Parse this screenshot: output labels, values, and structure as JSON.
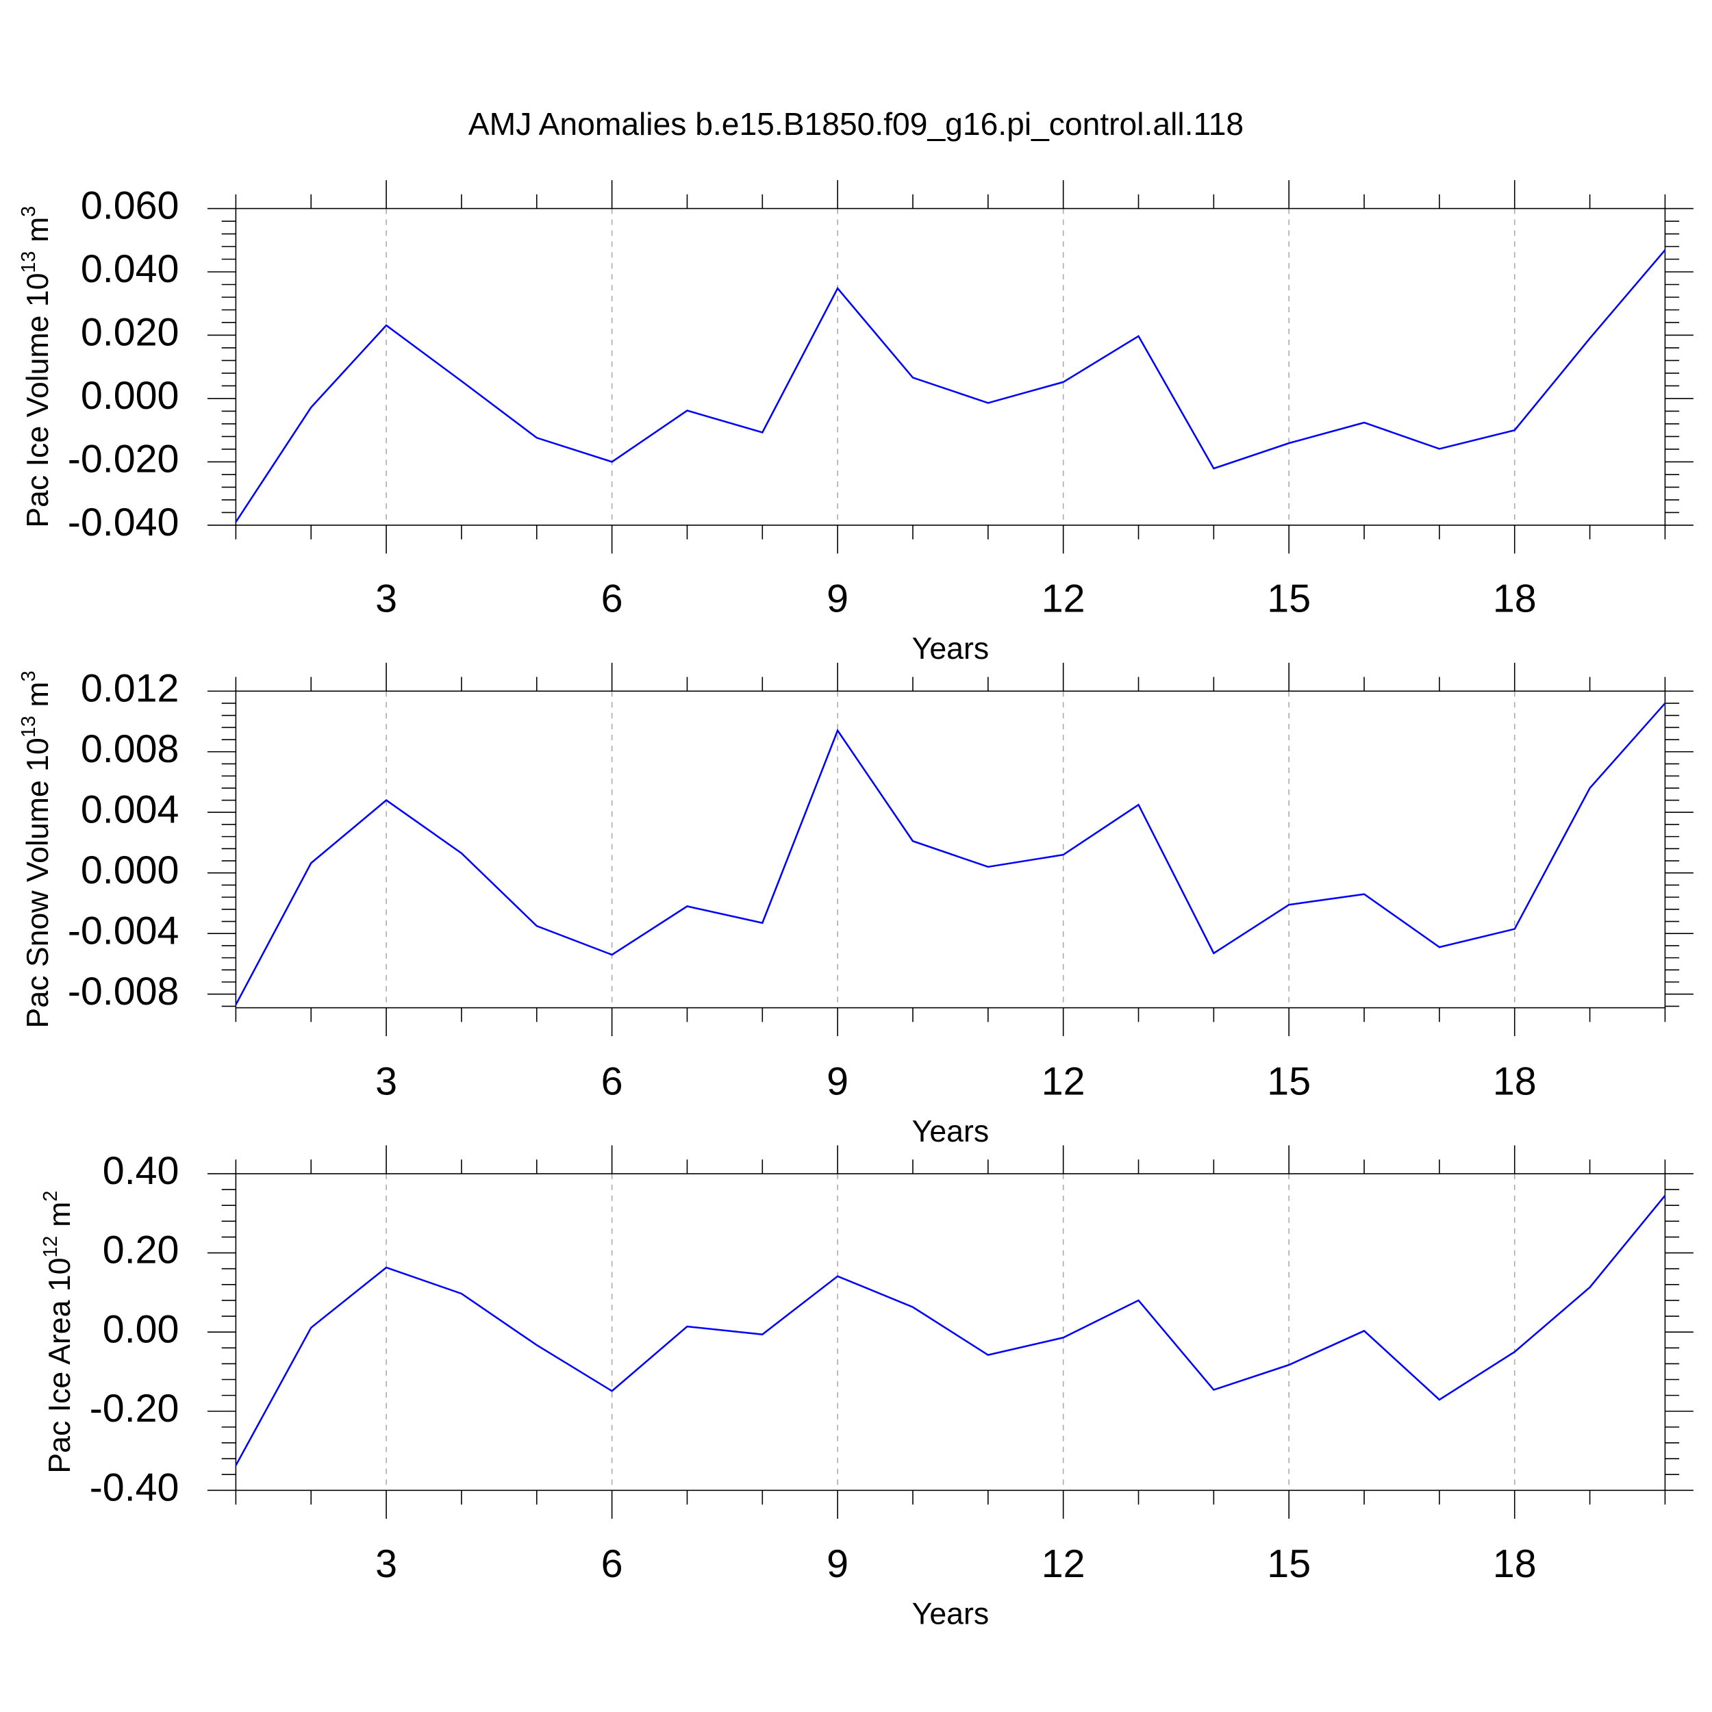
{
  "title": "AMJ Anomalies b.e15.B1850.f09_g16.pi_control.all.118",
  "chart_data": [
    {
      "type": "line",
      "x": [
        1,
        2,
        3,
        4,
        5,
        6,
        7,
        8,
        9,
        10,
        11,
        12,
        13,
        14,
        15,
        16,
        17,
        18,
        19,
        20
      ],
      "xlim": [
        1,
        20
      ],
      "xticks": [
        3,
        6,
        9,
        12,
        15,
        18
      ],
      "xminorticks": [
        1,
        2,
        4,
        5,
        7,
        8,
        10,
        11,
        13,
        14,
        16,
        17,
        19,
        20
      ],
      "xlabel": "Years",
      "ylabel": {
        "text": "Pac Ice Volume 10",
        "exp": "13",
        "unit": "m",
        "unit_exp": "3"
      },
      "ylim": [
        -0.04,
        0.06
      ],
      "yticks": [
        {
          "value": -0.04,
          "label": "-0.040"
        },
        {
          "value": -0.02,
          "label": "-0.020"
        },
        {
          "value": 0,
          "label": "0.000"
        },
        {
          "value": 0.02,
          "label": "0.020"
        },
        {
          "value": 0.04,
          "label": "0.040"
        },
        {
          "value": 0.06,
          "label": "0.060"
        }
      ],
      "yminorticks": [
        -0.036,
        -0.032,
        -0.028,
        -0.024,
        -0.016,
        -0.012,
        -0.008,
        -0.004,
        0.004,
        0.008,
        0.012,
        0.016,
        0.024,
        0.028,
        0.032,
        0.036,
        0.044,
        0.048,
        0.052,
        0.056
      ],
      "grid": true,
      "series": [
        {
          "color": "#0000ff",
          "values": [
            -0.039,
            -0.0028,
            0.0231,
            0.0055,
            -0.0124,
            -0.02,
            -0.0038,
            -0.0107,
            0.0348,
            0.0066,
            -0.0014,
            0.0052,
            0.0197,
            -0.0221,
            -0.0141,
            -0.0076,
            -0.0159,
            -0.01,
            0.019,
            0.0469
          ]
        }
      ]
    },
    {
      "type": "line",
      "x": [
        1,
        2,
        3,
        4,
        5,
        6,
        7,
        8,
        9,
        10,
        11,
        12,
        13,
        14,
        15,
        16,
        17,
        18,
        19,
        20
      ],
      "xlim": [
        1,
        20
      ],
      "xticks": [
        3,
        6,
        9,
        12,
        15,
        18
      ],
      "xminorticks": [
        1,
        2,
        4,
        5,
        7,
        8,
        10,
        11,
        13,
        14,
        16,
        17,
        19,
        20
      ],
      "xlabel": "Years",
      "ylabel": {
        "text": "Pac Snow Volume 10",
        "exp": "13",
        "unit": "m",
        "unit_exp": "3"
      },
      "ylim": [
        -0.0089,
        0.012
      ],
      "yticks": [
        {
          "value": -0.008,
          "label": "-0.008"
        },
        {
          "value": -0.004,
          "label": "-0.004"
        },
        {
          "value": 0,
          "label": "0.000"
        },
        {
          "value": 0.004,
          "label": "0.004"
        },
        {
          "value": 0.008,
          "label": "0.008"
        },
        {
          "value": 0.012,
          "label": "0.012"
        }
      ],
      "yminorticks": [
        -0.0088,
        -0.0072,
        -0.0064,
        -0.0056,
        -0.0048,
        -0.0032,
        -0.0024,
        -0.0016,
        -0.0008,
        0.0008,
        0.0016,
        0.0024,
        0.0032,
        0.0048,
        0.0056,
        0.0064,
        0.0072,
        0.0088,
        0.0096,
        0.0104,
        0.0112
      ],
      "grid": true,
      "series": [
        {
          "color": "#0000ff",
          "values": [
            -0.0087,
            0.00065,
            0.0048,
            0.0013,
            -0.0035,
            -0.0054,
            -0.0022,
            -0.0033,
            0.0094,
            0.0021,
            0.0004,
            0.0012,
            0.0045,
            -0.0053,
            -0.0021,
            -0.0014,
            -0.0049,
            -0.0037,
            0.0056,
            0.0112
          ]
        }
      ]
    },
    {
      "type": "line",
      "x": [
        1,
        2,
        3,
        4,
        5,
        6,
        7,
        8,
        9,
        10,
        11,
        12,
        13,
        14,
        15,
        16,
        17,
        18,
        19,
        20
      ],
      "xlim": [
        1,
        20
      ],
      "xticks": [
        3,
        6,
        9,
        12,
        15,
        18
      ],
      "xminorticks": [
        1,
        2,
        4,
        5,
        7,
        8,
        10,
        11,
        13,
        14,
        16,
        17,
        19,
        20
      ],
      "xlabel": "Years",
      "ylabel": {
        "text": "Pac Ice Area 10",
        "exp": "12",
        "unit": "m",
        "unit_exp": "2"
      },
      "ylim": [
        -0.4,
        0.4
      ],
      "yticks": [
        {
          "value": -0.4,
          "label": "-0.40"
        },
        {
          "value": -0.2,
          "label": "-0.20"
        },
        {
          "value": 0,
          "label": "0.00"
        },
        {
          "value": 0.2,
          "label": "0.20"
        },
        {
          "value": 0.4,
          "label": "0.40"
        }
      ],
      "yminorticks": [
        -0.36,
        -0.32,
        -0.28,
        -0.24,
        -0.16,
        -0.12,
        -0.08,
        -0.04,
        0.04,
        0.08,
        0.12,
        0.16,
        0.24,
        0.28,
        0.32,
        0.36
      ],
      "grid": true,
      "series": [
        {
          "color": "#0000ff",
          "values": [
            -0.337,
            0.011,
            0.163,
            0.097,
            -0.033,
            -0.149,
            0.014,
            -0.006,
            0.141,
            0.063,
            -0.058,
            -0.014,
            0.08,
            -0.146,
            -0.083,
            0.003,
            -0.171,
            -0.05,
            0.113,
            0.345
          ]
        }
      ]
    }
  ]
}
